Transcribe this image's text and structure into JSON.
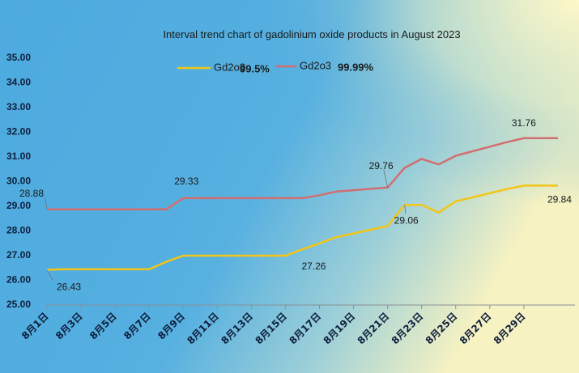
{
  "chart_data": {
    "type": "line",
    "title": "Interval trend chart of gadolinium oxide products in August 2023",
    "xlabel": "",
    "ylabel": "",
    "ylim": [
      25.0,
      35.0
    ],
    "yticks": [
      "25.00",
      "26.00",
      "27.00",
      "28.00",
      "29.00",
      "30.00",
      "31.00",
      "32.00",
      "33.00",
      "34.00",
      "35.00"
    ],
    "x_tick_labels": [
      "8月1日",
      "8月3日",
      "8月5日",
      "8月7日",
      "8月9日",
      "8月11日",
      "8月13日",
      "8月15日",
      "8月17日",
      "8月19日",
      "8月21日",
      "8月23日",
      "8月25日",
      "8月27日",
      "8月29日"
    ],
    "x": [
      1,
      2,
      3,
      4,
      7,
      8,
      9,
      10,
      11,
      14,
      15,
      16,
      17,
      18,
      21,
      22,
      23,
      24,
      25,
      28,
      29,
      30,
      31
    ],
    "series": [
      {
        "name": "Gd2o3",
        "name_suffix": "99.5%",
        "color": "#F2C516",
        "values": [
          26.43,
          26.45,
          26.45,
          26.45,
          26.45,
          26.75,
          27.0,
          27.0,
          27.0,
          27.0,
          27.0,
          27.26,
          27.5,
          27.75,
          28.2,
          29.06,
          29.06,
          28.75,
          29.2,
          29.7,
          29.84,
          29.84,
          29.84
        ]
      },
      {
        "name": "Gd2o3",
        "name_suffix": "99.99%",
        "color": "#D26E70",
        "values": [
          28.88,
          28.88,
          28.88,
          28.88,
          28.88,
          28.88,
          29.33,
          29.33,
          29.33,
          29.33,
          29.33,
          29.33,
          29.45,
          29.6,
          29.76,
          30.56,
          30.92,
          30.7,
          31.05,
          31.6,
          31.76,
          31.76,
          31.76
        ]
      }
    ],
    "data_labels": [
      {
        "text": "26.43",
        "series": 0,
        "x": 1,
        "y": 26.43
      },
      {
        "text": "27.26",
        "series": 0,
        "x": 16,
        "y": 27.26
      },
      {
        "text": "29.06",
        "series": 0,
        "x": 22,
        "y": 29.06
      },
      {
        "text": "29.84",
        "series": 0,
        "x": 31,
        "y": 29.84
      },
      {
        "text": "28.88",
        "series": 1,
        "x": 1,
        "y": 28.88
      },
      {
        "text": "29.33",
        "series": 1,
        "x": 9,
        "y": 29.33
      },
      {
        "text": "29.76",
        "series": 1,
        "x": 21,
        "y": 29.76
      },
      {
        "text": "31.76",
        "series": 1,
        "x": 29,
        "y": 31.76
      }
    ],
    "legend": "top-center",
    "grid": false
  }
}
